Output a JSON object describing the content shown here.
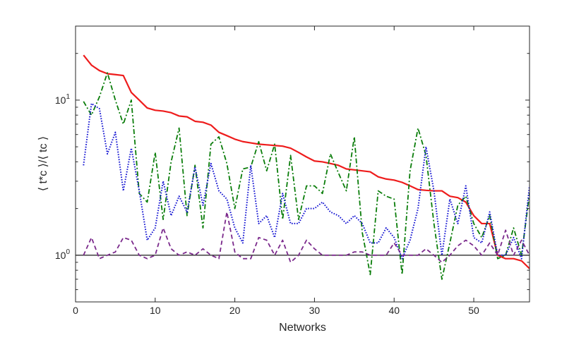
{
  "chart_data": {
    "type": "line",
    "xlabel": "Networks",
    "ylabel": "⟨ t*c ⟩/⟨ tc ⟩",
    "xlim": [
      0,
      57
    ],
    "ylim": [
      0.5,
      30
    ],
    "yscale": "log",
    "x_ticks": [
      0,
      10,
      20,
      30,
      40,
      50
    ],
    "x_tick_labels": [
      "0",
      "10",
      "20",
      "30",
      "40",
      "50"
    ],
    "y_ticks": [
      1,
      10
    ],
    "y_tick_labels": [
      {
        "base": "10",
        "exp": "0"
      },
      {
        "base": "10",
        "exp": "1"
      }
    ],
    "reference_line": 1,
    "grid": false,
    "x": [
      1,
      2,
      3,
      4,
      5,
      6,
      7,
      8,
      9,
      10,
      11,
      12,
      13,
      14,
      15,
      16,
      17,
      18,
      19,
      20,
      21,
      22,
      23,
      24,
      25,
      26,
      27,
      28,
      29,
      30,
      31,
      32,
      33,
      34,
      35,
      36,
      37,
      38,
      39,
      40,
      41,
      42,
      43,
      44,
      45,
      46,
      47,
      48,
      49,
      50,
      51,
      52,
      53,
      54,
      55,
      56,
      57
    ],
    "series": [
      {
        "color": "#ee1c1c",
        "style": "solid",
        "values": [
          19.5,
          16.8,
          15.5,
          14.8,
          14.6,
          14.4,
          11.2,
          10.0,
          8.9,
          8.6,
          8.5,
          8.3,
          7.9,
          7.8,
          7.3,
          7.2,
          6.9,
          6.2,
          5.9,
          5.6,
          5.4,
          5.3,
          5.2,
          5.15,
          5.1,
          5.05,
          4.9,
          4.6,
          4.3,
          4.05,
          4.0,
          3.9,
          3.8,
          3.6,
          3.55,
          3.5,
          3.45,
          3.2,
          3.1,
          3.05,
          2.95,
          2.8,
          2.65,
          2.62,
          2.6,
          2.6,
          2.4,
          2.35,
          2.2,
          1.8,
          1.6,
          1.6,
          1.0,
          0.95,
          0.95,
          0.92,
          0.82
        ]
      },
      {
        "color": "#0a7d0a",
        "style": "dashdot",
        "values": [
          9.8,
          8.0,
          10.5,
          15.0,
          10.0,
          7.0,
          10.0,
          2.5,
          2.2,
          4.6,
          1.7,
          4.0,
          6.6,
          1.8,
          3.8,
          1.5,
          5.2,
          5.8,
          3.9,
          2.0,
          3.6,
          3.7,
          5.4,
          3.5,
          5.2,
          1.7,
          4.4,
          1.7,
          2.8,
          2.8,
          2.5,
          4.5,
          3.4,
          2.6,
          5.8,
          1.4,
          0.75,
          2.6,
          2.4,
          2.3,
          0.75,
          3.5,
          6.6,
          4.4,
          1.6,
          0.7,
          1.2,
          2.1,
          2.4,
          1.6,
          1.3,
          1.8,
          0.95,
          1.0,
          1.5,
          1.0,
          2.5
        ]
      },
      {
        "color": "#1414d2",
        "style": "dotted",
        "values": [
          3.8,
          9.5,
          8.8,
          4.5,
          6.2,
          2.6,
          4.9,
          2.6,
          1.25,
          1.5,
          3.0,
          1.8,
          2.4,
          1.9,
          3.7,
          2.1,
          3.9,
          2.6,
          2.3,
          1.5,
          1.2,
          3.8,
          1.6,
          1.8,
          1.3,
          2.5,
          1.6,
          1.6,
          2.0,
          2.0,
          2.2,
          1.9,
          1.8,
          1.6,
          1.8,
          1.6,
          1.2,
          1.2,
          1.5,
          1.3,
          0.95,
          1.25,
          2.0,
          5.0,
          2.6,
          1.0,
          2.3,
          1.6,
          2.8,
          1.3,
          1.2,
          1.9,
          1.0,
          1.0,
          1.3,
          0.95,
          2.8
        ]
      },
      {
        "color": "#7b2a8c",
        "style": "dashed",
        "values": [
          1.0,
          1.3,
          0.95,
          1.0,
          1.05,
          1.3,
          1.25,
          1.0,
          0.95,
          1.0,
          1.5,
          1.1,
          1.0,
          1.05,
          1.0,
          1.1,
          1.0,
          0.95,
          1.9,
          1.05,
          0.95,
          0.95,
          1.3,
          1.25,
          1.0,
          1.25,
          0.9,
          1.0,
          1.25,
          1.1,
          1.0,
          1.0,
          1.0,
          1.0,
          1.05,
          1.05,
          1.0,
          1.0,
          1.0,
          1.2,
          1.0,
          1.0,
          1.0,
          1.1,
          1.0,
          0.9,
          1.0,
          1.15,
          1.25,
          1.15,
          1.0,
          1.2,
          1.0,
          1.45,
          1.0,
          1.25,
          1.0
        ]
      }
    ]
  }
}
